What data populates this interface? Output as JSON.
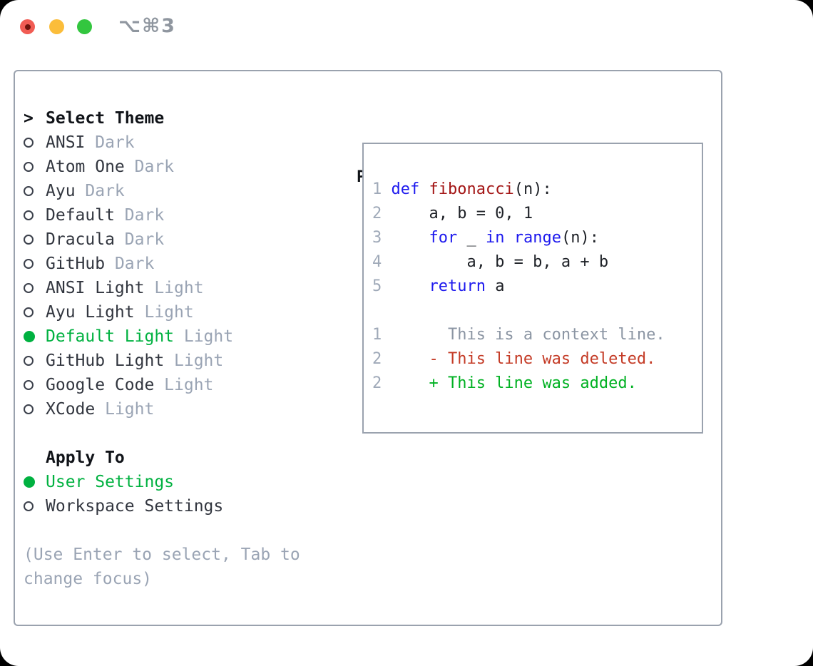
{
  "titlebar": {
    "shortcut_label": "⌥⌘3"
  },
  "colors": {
    "accent_green": "#00b140",
    "added_green": "#00b122",
    "deleted_red": "#c43b26",
    "keyword_blue": "#1d19ee",
    "function_red": "#a31515",
    "muted_gray": "#9aa4b4",
    "border_gray": "#9aa2ae",
    "traffic_red": "#f15c54",
    "traffic_yellow": "#fbbd3a",
    "traffic_green": "#33c63f"
  },
  "theme_menu": {
    "prompt": ">",
    "header": "Select Theme",
    "items": [
      {
        "name": "ANSI",
        "variant": "Dark",
        "selected": false
      },
      {
        "name": "Atom One",
        "variant": "Dark",
        "selected": false
      },
      {
        "name": "Ayu",
        "variant": "Dark",
        "selected": false
      },
      {
        "name": "Default",
        "variant": "Dark",
        "selected": false
      },
      {
        "name": "Dracula",
        "variant": "Dark",
        "selected": false
      },
      {
        "name": "GitHub",
        "variant": "Dark",
        "selected": false
      },
      {
        "name": "ANSI Light",
        "variant": "Light",
        "selected": false
      },
      {
        "name": "Ayu Light",
        "variant": "Light",
        "selected": false
      },
      {
        "name": "Default Light",
        "variant": "Light",
        "selected": true
      },
      {
        "name": "GitHub Light",
        "variant": "Light",
        "selected": false
      },
      {
        "name": "Google Code",
        "variant": "Light",
        "selected": false
      },
      {
        "name": "XCode",
        "variant": "Light",
        "selected": false
      }
    ]
  },
  "apply_to": {
    "header": "Apply To",
    "options": [
      {
        "label": "User Settings",
        "selected": true
      },
      {
        "label": "Workspace Settings",
        "selected": false
      }
    ]
  },
  "hint": "(Use Enter to select, Tab to change focus)",
  "preview": {
    "header": "Preview",
    "code_lines": [
      {
        "num": "1",
        "segments": [
          [
            "kw",
            "def"
          ],
          [
            "pl",
            " "
          ],
          [
            "fn",
            "fibonacci"
          ],
          [
            "pl",
            "(n):"
          ]
        ]
      },
      {
        "num": "2",
        "segments": [
          [
            "pl",
            "    a, b = 0, 1"
          ]
        ]
      },
      {
        "num": "3",
        "segments": [
          [
            "pl",
            "    "
          ],
          [
            "kw",
            "for"
          ],
          [
            "pl",
            " _ "
          ],
          [
            "kw",
            "in"
          ],
          [
            "pl",
            " "
          ],
          [
            "kw",
            "range"
          ],
          [
            "pl",
            "(n):"
          ]
        ]
      },
      {
        "num": "4",
        "segments": [
          [
            "pl",
            "        a, b = b, a + b"
          ]
        ]
      },
      {
        "num": "5",
        "segments": [
          [
            "pl",
            "    "
          ],
          [
            "kw",
            "return"
          ],
          [
            "pl",
            " a"
          ]
        ]
      }
    ],
    "diff_lines": [
      {
        "num": "1",
        "segments": [
          [
            "ctx",
            "      This is a context line."
          ]
        ]
      },
      {
        "num": "2",
        "segments": [
          [
            "del",
            "    - This line was deleted."
          ]
        ]
      },
      {
        "num": "2",
        "segments": [
          [
            "add",
            "    + This line was added."
          ]
        ]
      }
    ]
  }
}
